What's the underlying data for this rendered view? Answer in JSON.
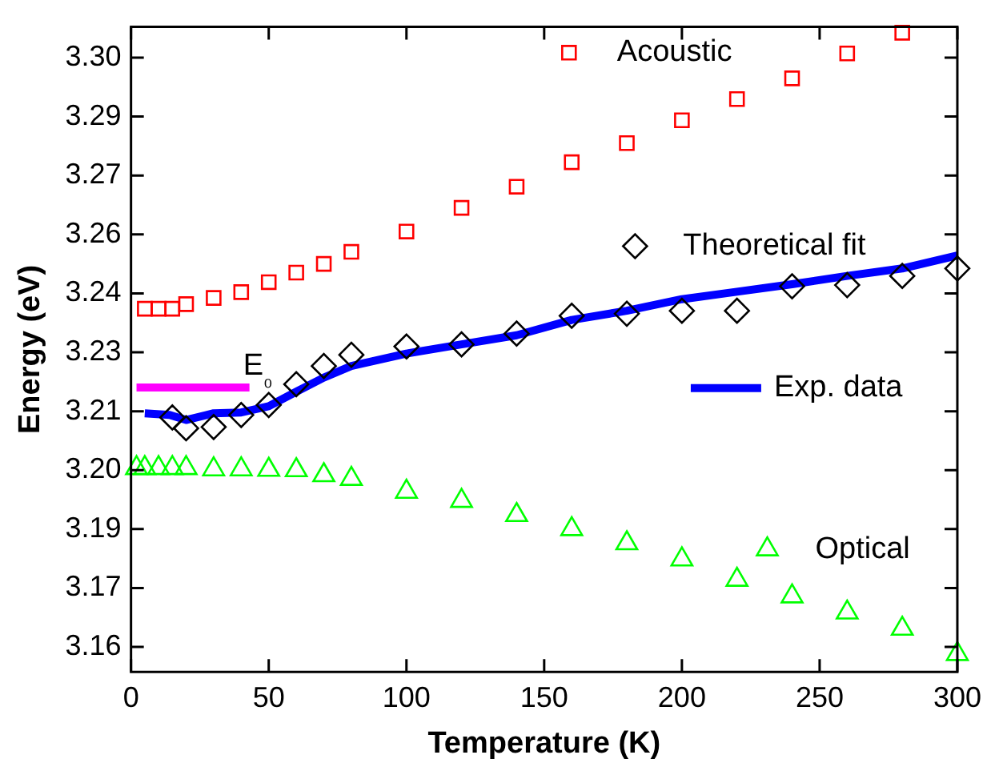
{
  "chart_data": {
    "type": "scatter",
    "xlabel": "Temperature (K)",
    "ylabel": "Energy (eV)",
    "xlim": [
      0,
      300
    ],
    "xticks": [
      0,
      50,
      100,
      150,
      200,
      250,
      300
    ],
    "ylim": [
      3.1516,
      3.307
    ],
    "yticks": [
      {
        "value": 3.1576,
        "label": "3.16"
      },
      {
        "value": 3.1718,
        "label": "3.17"
      },
      {
        "value": 3.186,
        "label": "3.19"
      },
      {
        "value": 3.2002,
        "label": "3.20"
      },
      {
        "value": 3.2144,
        "label": "3.21"
      },
      {
        "value": 3.2286,
        "label": "3.23"
      },
      {
        "value": 3.2428,
        "label": "3.24"
      },
      {
        "value": 3.257,
        "label": "3.26"
      },
      {
        "value": 3.2712,
        "label": "3.27"
      },
      {
        "value": 3.2854,
        "label": "3.29"
      },
      {
        "value": 3.2996,
        "label": "3.30"
      }
    ],
    "grid": false,
    "legend": "right",
    "series": [
      {
        "name": "Acoustic",
        "marker": "square",
        "color": "#ff0000",
        "x": [
          5,
          10,
          15,
          20,
          30,
          40,
          50,
          60,
          70,
          80,
          100,
          120,
          140,
          160,
          180,
          200,
          220,
          240,
          260,
          280
        ],
        "values": [
          3.2391,
          3.2391,
          3.2391,
          3.2402,
          3.2417,
          3.2431,
          3.2455,
          3.2478,
          3.2499,
          3.2528,
          3.2577,
          3.2634,
          3.2685,
          3.2744,
          3.279,
          3.2845,
          3.2896,
          3.2946,
          3.3006,
          3.3056
        ]
      },
      {
        "name": "Theoretical fit",
        "marker": "diamond",
        "color": "#000000",
        "x": [
          15,
          20,
          30,
          40,
          50,
          60,
          70,
          80,
          100,
          120,
          140,
          160,
          180,
          200,
          220,
          240,
          260,
          280,
          300
        ],
        "values": [
          3.2129,
          3.2103,
          3.2106,
          3.2135,
          3.2159,
          3.2209,
          3.2253,
          3.228,
          3.23,
          3.2305,
          3.2331,
          3.2374,
          3.2379,
          3.2386,
          3.2386,
          3.2445,
          3.2448,
          3.247,
          3.2488
        ]
      },
      {
        "name": "Exp. data",
        "type": "line",
        "marker": "none",
        "color": "#0000ff",
        "x": [
          5,
          14,
          20,
          30,
          40,
          50,
          60,
          70,
          80,
          100,
          120,
          140,
          160,
          180,
          200,
          220,
          240,
          260,
          280,
          300
        ],
        "values": [
          3.2139,
          3.2135,
          3.2123,
          3.2139,
          3.2141,
          3.2156,
          3.2191,
          3.2225,
          3.2253,
          3.2283,
          3.2305,
          3.2327,
          3.2364,
          3.2386,
          3.2414,
          3.2432,
          3.245,
          3.247,
          3.2488,
          3.2519
        ]
      },
      {
        "name": "Optical",
        "marker": "triangle",
        "color": "#00ff00",
        "x": [
          2,
          5,
          10,
          15,
          20,
          30,
          40,
          50,
          60,
          70,
          80,
          100,
          120,
          140,
          160,
          180,
          200,
          220,
          240,
          260,
          280,
          300
        ],
        "values": [
          3.2007,
          3.2007,
          3.2007,
          3.2007,
          3.2007,
          3.2004,
          3.2004,
          3.2003,
          3.2002,
          3.199,
          3.1981,
          3.195,
          3.1928,
          3.1894,
          3.186,
          3.1826,
          3.1787,
          3.1738,
          3.1698,
          3.1659,
          3.162,
          3.1559
        ]
      },
      {
        "name": "E₀",
        "type": "line",
        "marker": "none",
        "color": "#ff00ff",
        "x": [
          2,
          43
        ],
        "values": [
          3.2201,
          3.2201
        ]
      }
    ]
  }
}
